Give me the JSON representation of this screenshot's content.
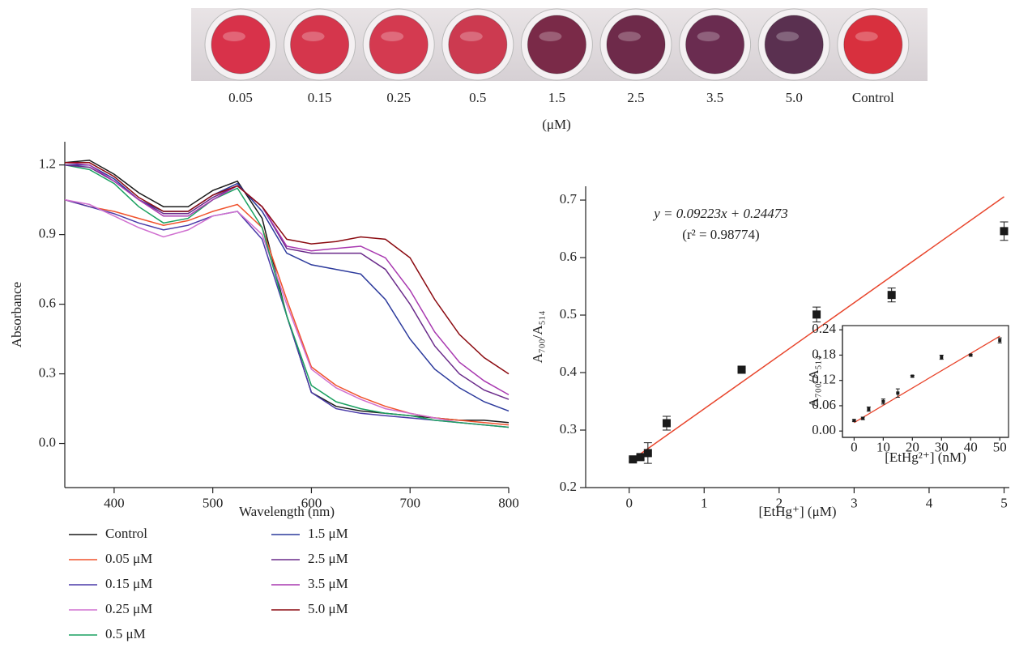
{
  "photo": {
    "labels": [
      "0.05",
      "0.15",
      "0.25",
      "0.5",
      "1.5",
      "2.5",
      "3.5",
      "5.0",
      "Control"
    ],
    "unit": "(μM)",
    "well_colors": [
      "#d8324a",
      "#d5364c",
      "#d43a50",
      "#cc3a50",
      "#7a2a48",
      "#6e2a4a",
      "#6a2c50",
      "#5a3050",
      "#d8303e"
    ]
  },
  "chart_data": [
    {
      "type": "line",
      "xlabel": "Wavelength (nm)",
      "ylabel": "Absorbance",
      "x": [
        350,
        375,
        400,
        425,
        450,
        475,
        500,
        525,
        550,
        575,
        600,
        625,
        650,
        675,
        700,
        725,
        750,
        775,
        800
      ],
      "xlim": [
        350,
        800
      ],
      "xticks": [
        400,
        500,
        600,
        700,
        800
      ],
      "ylim": [
        -0.19,
        1.3
      ],
      "yticks": [
        {
          "value": 0,
          "label": "0.0"
        },
        0.3,
        0.6,
        0.9,
        1.2
      ],
      "series": [
        {
          "name": "Control",
          "color": "#1a1a1a",
          "values": [
            1.21,
            1.22,
            1.16,
            1.08,
            1.02,
            1.02,
            1.09,
            1.13,
            0.97,
            0.55,
            0.22,
            0.16,
            0.14,
            0.13,
            0.12,
            0.11,
            0.1,
            0.1,
            0.09
          ]
        },
        {
          "name": "0.05 μM",
          "color": "#f0522c",
          "values": [
            1.05,
            1.02,
            1.0,
            0.97,
            0.94,
            0.96,
            1.0,
            1.03,
            0.93,
            0.62,
            0.33,
            0.25,
            0.2,
            0.16,
            0.13,
            0.11,
            0.1,
            0.09,
            0.08
          ]
        },
        {
          "name": "0.15 μM",
          "color": "#4a3aa8",
          "values": [
            1.05,
            1.02,
            0.99,
            0.95,
            0.92,
            0.94,
            0.98,
            1.0,
            0.88,
            0.55,
            0.22,
            0.15,
            0.13,
            0.12,
            0.11,
            0.1,
            0.09,
            0.08,
            0.07
          ]
        },
        {
          "name": "0.25 μM",
          "color": "#d070d0",
          "values": [
            1.05,
            1.03,
            0.98,
            0.93,
            0.89,
            0.92,
            0.98,
            1.0,
            0.9,
            0.6,
            0.32,
            0.24,
            0.19,
            0.15,
            0.13,
            0.11,
            0.09,
            0.08,
            0.07
          ]
        },
        {
          "name": "0.5 μM",
          "color": "#1aa060",
          "values": [
            1.2,
            1.18,
            1.12,
            1.02,
            0.95,
            0.97,
            1.05,
            1.1,
            0.93,
            0.55,
            0.25,
            0.18,
            0.15,
            0.13,
            0.12,
            0.1,
            0.09,
            0.08,
            0.07
          ]
        },
        {
          "name": "1.5 μM",
          "color": "#2c3a9c",
          "values": [
            1.2,
            1.2,
            1.14,
            1.05,
            1.0,
            1.0,
            1.07,
            1.12,
            1.0,
            0.82,
            0.77,
            0.75,
            0.73,
            0.62,
            0.45,
            0.32,
            0.24,
            0.18,
            0.14
          ]
        },
        {
          "name": "2.5 μM",
          "color": "#6a2a8a",
          "values": [
            1.2,
            1.19,
            1.13,
            1.05,
            0.99,
            0.99,
            1.06,
            1.11,
            1.02,
            0.84,
            0.82,
            0.82,
            0.82,
            0.75,
            0.6,
            0.42,
            0.3,
            0.23,
            0.19
          ]
        },
        {
          "name": "3.5 μM",
          "color": "#a838b0",
          "values": [
            1.21,
            1.2,
            1.13,
            1.05,
            0.98,
            0.98,
            1.05,
            1.11,
            1.02,
            0.85,
            0.83,
            0.84,
            0.85,
            0.8,
            0.66,
            0.48,
            0.35,
            0.27,
            0.21
          ]
        },
        {
          "name": "5.0 μM",
          "color": "#8b0a10",
          "values": [
            1.21,
            1.21,
            1.15,
            1.06,
            1.0,
            1.0,
            1.07,
            1.11,
            1.02,
            0.88,
            0.86,
            0.87,
            0.89,
            0.88,
            0.8,
            0.62,
            0.47,
            0.37,
            0.3
          ]
        }
      ]
    },
    {
      "type": "scatter",
      "xlabel": "[EtHg⁺] (μM)",
      "ylabel": "A₇₀₀/A₅₁₄",
      "xlim": [
        -0.58,
        5.07
      ],
      "xticks": [
        0,
        1,
        2,
        3,
        4,
        5
      ],
      "ylim": [
        0.2,
        0.724
      ],
      "yticks": [
        0.2,
        0.3,
        0.4,
        0.5,
        0.6,
        0.7
      ],
      "annotations": [
        "y = 0.09223x + 0.24473",
        "(r² = 0.98774)"
      ],
      "fit": {
        "slope": 0.09223,
        "intercept": 0.24473,
        "x": [
          0.05,
          5.0
        ],
        "color": "#e8452c"
      },
      "series": [
        {
          "color": "#1a1a1a",
          "x": [
            0.05,
            0.15,
            0.25,
            0.5,
            1.5,
            2.5,
            3.5,
            5.0
          ],
          "values": [
            0.249,
            0.253,
            0.26,
            0.312,
            0.405,
            0.501,
            0.535,
            0.646
          ],
          "errors": [
            0.003,
            0.004,
            0.018,
            0.012,
            0.003,
            0.013,
            0.012,
            0.016
          ]
        }
      ]
    },
    {
      "type": "scatter",
      "xlabel": "[EtHg²⁺] (nM)",
      "ylabel": "A₇₀₀/A₅₁₄",
      "xlim": [
        -4,
        53
      ],
      "xticks": [
        0,
        10,
        20,
        30,
        40,
        50
      ],
      "ylim": [
        -0.015,
        0.25
      ],
      "yticks": [
        {
          "value": 0,
          "label": "0.00"
        },
        {
          "value": 0.06,
          "label": "0.06"
        },
        {
          "value": 0.12,
          "label": "0.12"
        },
        {
          "value": 0.18,
          "label": "0.18"
        },
        {
          "value": 0.24,
          "label": "0.24"
        }
      ],
      "fit_line": {
        "x": [
          0,
          50
        ],
        "y": [
          0.02,
          0.225
        ],
        "color": "#e8452c"
      },
      "series": [
        {
          "color": "#1a1a1a",
          "x": [
            0,
            3,
            5,
            10,
            15,
            20,
            30,
            40,
            50
          ],
          "values": [
            0.025,
            0.03,
            0.052,
            0.07,
            0.09,
            0.13,
            0.175,
            0.18,
            0.215
          ],
          "errors": [
            0.002,
            0.003,
            0.005,
            0.006,
            0.01,
            0.002,
            0.005,
            0.002,
            0.006
          ]
        }
      ]
    }
  ]
}
